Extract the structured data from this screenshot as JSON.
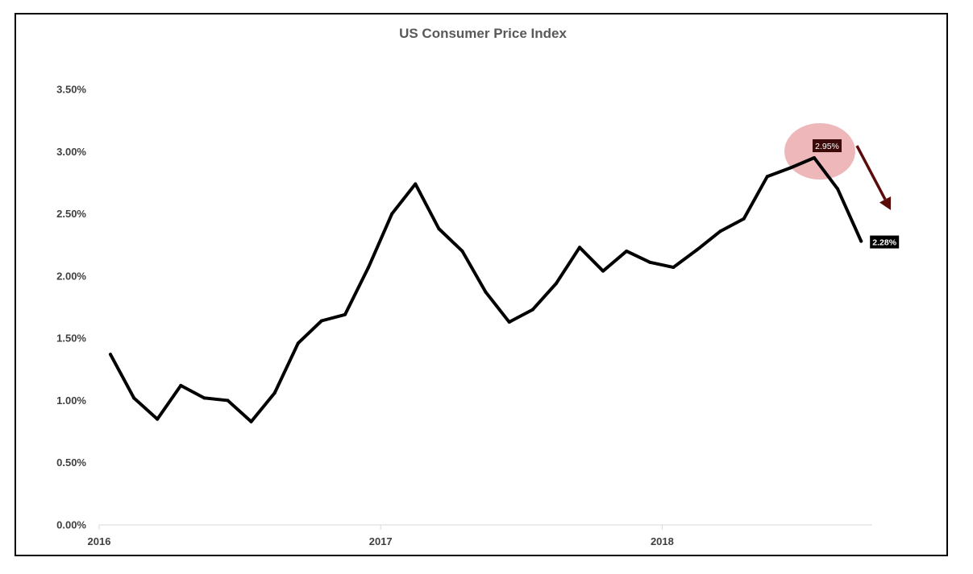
{
  "chart_data": {
    "type": "line",
    "title": "US Consumer Price Index",
    "xlabel": "",
    "ylabel": "",
    "ylim": [
      0,
      0.035
    ],
    "y_ticks": [
      "0.00%",
      "0.50%",
      "1.00%",
      "1.50%",
      "2.00%",
      "2.50%",
      "3.00%",
      "3.50%"
    ],
    "y_tick_values": [
      0,
      0.005,
      0.01,
      0.015,
      0.02,
      0.025,
      0.03,
      0.035
    ],
    "x_ticks": [
      "2016",
      "2017",
      "2018"
    ],
    "x_tick_indices": [
      0,
      12,
      24
    ],
    "grid": false,
    "legend": "none",
    "series": [
      {
        "color": "#000000",
        "x": [
          "2016-01",
          "2016-02",
          "2016-03",
          "2016-04",
          "2016-05",
          "2016-06",
          "2016-07",
          "2016-08",
          "2016-09",
          "2016-10",
          "2016-11",
          "2016-12",
          "2017-01",
          "2017-02",
          "2017-03",
          "2017-04",
          "2017-05",
          "2017-06",
          "2017-07",
          "2017-08",
          "2017-09",
          "2017-10",
          "2017-11",
          "2017-12",
          "2018-01",
          "2018-02",
          "2018-03",
          "2018-04",
          "2018-05",
          "2018-06",
          "2018-07",
          "2018-08",
          "2018-09"
        ],
        "values": [
          0.0137,
          0.0102,
          0.0085,
          0.0112,
          0.0102,
          0.01,
          0.0083,
          0.0106,
          0.0146,
          0.0164,
          0.0169,
          0.0207,
          0.025,
          0.0274,
          0.0238,
          0.022,
          0.0187,
          0.0163,
          0.0173,
          0.0194,
          0.0223,
          0.0204,
          0.022,
          0.0211,
          0.0207,
          0.0221,
          0.0236,
          0.0246,
          0.028,
          0.0287,
          0.0295,
          0.027,
          0.0228
        ]
      }
    ],
    "annotations": [
      {
        "label": "2.95%",
        "index": 30,
        "value": 0.0295,
        "style": "highlight-circle",
        "bg": "#3d0a0a",
        "circle_color": "#e8a0a3"
      },
      {
        "label": "2.28%",
        "index": 32,
        "value": 0.0228,
        "style": "end-label",
        "bg": "#000000"
      }
    ],
    "arrow_color": "#5c0b0b"
  }
}
